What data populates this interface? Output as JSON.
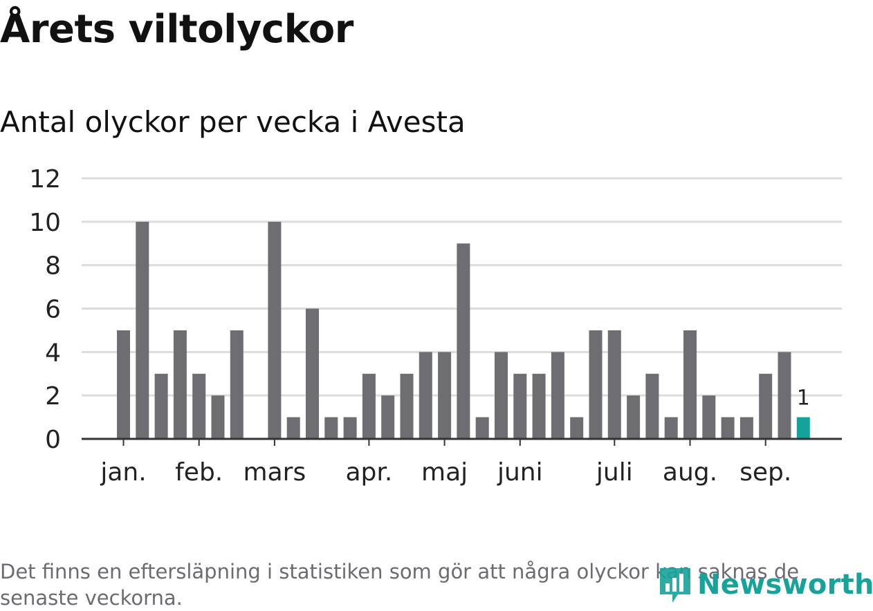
{
  "title": "Årets viltolyckor",
  "subtitle": "Antal olyckor per vecka i Avesta",
  "footnote": "Det finns en eftersläpning i statistiken som gör att några olyckor kan saknas de senaste veckorna.",
  "logo": {
    "text": "Newsworthy",
    "icon": "newsworthy-logo-icon"
  },
  "colors": {
    "bar": "#6e6d72",
    "highlight": "#14a39a",
    "grid": "#dcdcdc",
    "axis": "#333333"
  },
  "chart_data": {
    "type": "bar",
    "y_ticks": [
      "0",
      "2",
      "4",
      "6",
      "8",
      "10",
      "12"
    ],
    "ylim": [
      0,
      12
    ],
    "x_tick_labels": [
      "jan.",
      "feb.",
      "mars",
      "apr.",
      "maj",
      "juni",
      "juli",
      "aug.",
      "sep."
    ],
    "x_tick_weeks": [
      1,
      5,
      9,
      14,
      18,
      22,
      27,
      31,
      35
    ],
    "weeks": [
      1,
      2,
      3,
      4,
      5,
      6,
      7,
      8,
      9,
      10,
      11,
      12,
      13,
      14,
      15,
      16,
      17,
      18,
      19,
      20,
      21,
      22,
      23,
      24,
      25,
      26,
      27,
      28,
      29,
      30,
      31,
      32,
      33,
      34,
      35,
      36,
      37
    ],
    "values": [
      5,
      10,
      3,
      5,
      3,
      2,
      5,
      0,
      10,
      1,
      6,
      1,
      1,
      3,
      2,
      3,
      4,
      4,
      9,
      1,
      4,
      3,
      3,
      4,
      1,
      5,
      5,
      2,
      3,
      1,
      5,
      2,
      1,
      1,
      3,
      4,
      1
    ],
    "highlight_index": 36,
    "highlight_label": "1",
    "grid": true
  }
}
